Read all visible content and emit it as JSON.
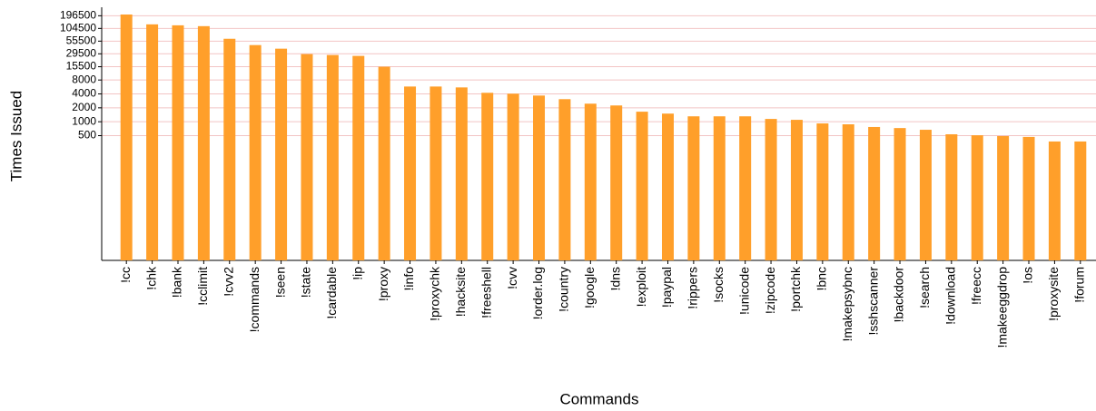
{
  "chart_data": {
    "type": "bar",
    "x_label": "Commands",
    "y_label": "Times Issued",
    "categories": [
      "!cc",
      "!chk",
      "!bank",
      "!cclimit",
      "!cvv2",
      "!commands",
      "!seen",
      "!state",
      "!cardable",
      "!ip",
      "!proxy",
      "!info",
      "!proxychk",
      "!hacksite",
      "!freeshell",
      "!cvv",
      "!order.log",
      "!country",
      "!google",
      "!dns",
      "!exploit",
      "!paypal",
      "!rippers",
      "!socks",
      "!unicode",
      "!zipcode",
      "!portchk",
      "!bnc",
      "!makepsybnc",
      "!sshscanner",
      "!backdoor",
      "!search",
      "!download",
      "!freecc",
      "!makeeggdrop",
      "!os",
      "!proxysite",
      "!forum"
    ],
    "values": [
      209000,
      128000,
      122000,
      117000,
      62400,
      45600,
      38100,
      29100,
      27800,
      26600,
      15500,
      5780,
      5780,
      5530,
      4230,
      4040,
      3690,
      3080,
      2460,
      2250,
      1650,
      1500,
      1310,
      1310,
      1310,
      1150,
      1100,
      920,
      880,
      770,
      730,
      670,
      535,
      510,
      490,
      470,
      374,
      374
    ],
    "color": "#ff9f2a",
    "log_scale": true,
    "ylim": [
      1,
      300000
    ],
    "yticks": [
      500,
      1000,
      2000,
      4000,
      8000,
      15500,
      29500,
      55500,
      104500,
      196500
    ],
    "grid": true,
    "grid_color": "#f2c4c4"
  }
}
